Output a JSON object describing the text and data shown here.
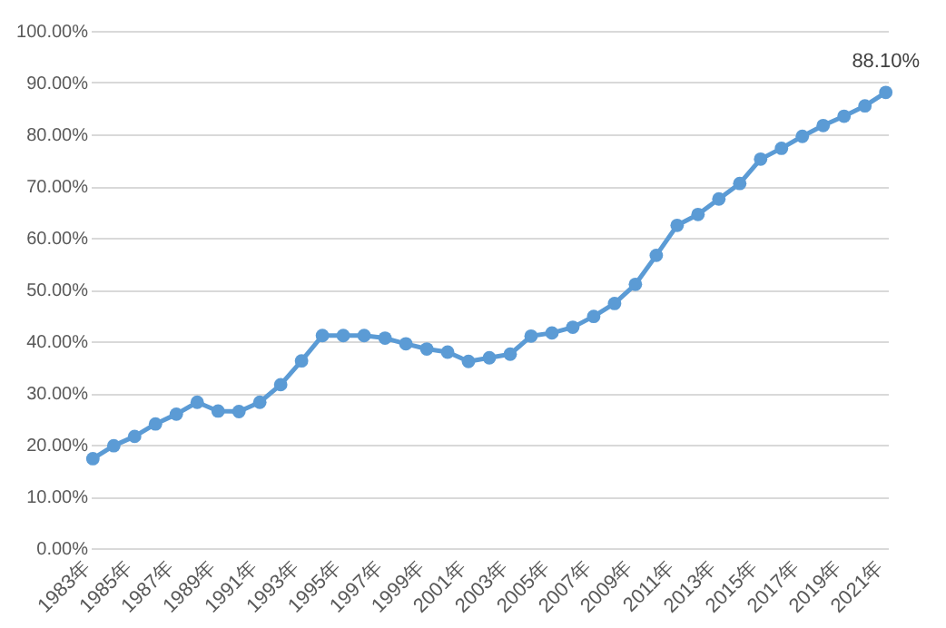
{
  "chart_data": {
    "type": "line",
    "categories": [
      "1983年",
      null,
      "1985年",
      null,
      "1987年",
      null,
      "1989年",
      null,
      "1991年",
      null,
      "1993年",
      null,
      "1995年",
      null,
      "1997年",
      null,
      "1999年",
      null,
      "2001年",
      null,
      "2003年",
      null,
      "2005年",
      null,
      "2007年",
      null,
      "2009年",
      null,
      "2011年",
      null,
      "2013年",
      null,
      "2015年",
      null,
      "2017年",
      null,
      "2019年",
      null,
      "2021年"
    ],
    "series": [
      {
        "color": "#5b9bd5",
        "values": [
          17.3,
          19.8,
          21.6,
          24.0,
          25.9,
          28.2,
          26.5,
          26.4,
          28.2,
          31.6,
          36.2,
          41.1,
          41.1,
          41.1,
          40.6,
          39.5,
          38.5,
          37.9,
          36.1,
          36.8,
          37.5,
          41.0,
          41.6,
          42.7,
          44.8,
          47.3,
          51.0,
          56.6,
          62.4,
          64.5,
          67.5,
          70.5,
          75.2,
          77.3,
          79.6,
          81.7,
          83.5,
          85.5,
          88.1
        ]
      }
    ],
    "ylim": [
      0,
      100
    ],
    "yticks": [
      {
        "value": 0,
        "label": "0.00%"
      },
      {
        "value": 10,
        "label": "10.00%"
      },
      {
        "value": 20,
        "label": "20.00%"
      },
      {
        "value": 30,
        "label": "30.00%"
      },
      {
        "value": 40,
        "label": "40.00%"
      },
      {
        "value": 50,
        "label": "50.00%"
      },
      {
        "value": 60,
        "label": "60.00%"
      },
      {
        "value": 70,
        "label": "70.00%"
      },
      {
        "value": 80,
        "label": "80.00%"
      },
      {
        "value": 90,
        "label": "90.00%"
      },
      {
        "value": 100,
        "label": "100.00%"
      }
    ],
    "grid": "y",
    "marker": "circle",
    "line_style": "solid",
    "legend": false,
    "annotations": [
      {
        "text": "88.10%",
        "x": "2021年",
        "y": 88.1
      }
    ]
  }
}
